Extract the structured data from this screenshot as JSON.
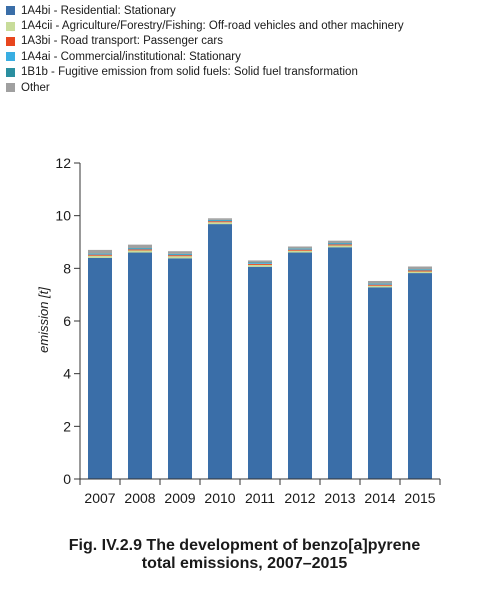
{
  "chart_data": {
    "type": "bar",
    "stacked": true,
    "categories": [
      "2007",
      "2008",
      "2009",
      "2010",
      "2011",
      "2012",
      "2013",
      "2014",
      "2015"
    ],
    "series": [
      {
        "name": "1A4bi - Residential: Stationary",
        "color": "#3a6ea8",
        "values": [
          8.4,
          8.6,
          8.38,
          9.68,
          8.06,
          8.6,
          8.8,
          7.28,
          7.82
        ]
      },
      {
        "name": "1A4cii - Agriculture/Forestry/Fishing: Off-road vehicles and other machinery",
        "color": "#c8dc9a",
        "values": [
          0.08,
          0.08,
          0.08,
          0.07,
          0.07,
          0.07,
          0.07,
          0.06,
          0.06
        ]
      },
      {
        "name": "1A3bi - Road transport: Passenger cars",
        "color": "#e8461e",
        "values": [
          0.04,
          0.04,
          0.04,
          0.04,
          0.04,
          0.04,
          0.04,
          0.04,
          0.04
        ]
      },
      {
        "name": "1A4ai - Commercial/institutional: Stationary",
        "color": "#39aee2",
        "values": [
          0.03,
          0.03,
          0.03,
          0.03,
          0.03,
          0.03,
          0.03,
          0.03,
          0.03
        ]
      },
      {
        "name": "1B1b - Fugitive emission from solid fuels: Solid fuel transformation",
        "color": "#2a8fa0",
        "values": [
          0.02,
          0.02,
          0.02,
          0.02,
          0.02,
          0.02,
          0.02,
          0.02,
          0.02
        ]
      },
      {
        "name": "Other",
        "color": "#a0a0a0",
        "values": [
          0.13,
          0.13,
          0.1,
          0.06,
          0.08,
          0.07,
          0.09,
          0.09,
          0.1
        ]
      }
    ],
    "ylabel": "emission [t]",
    "ylim": [
      0,
      12
    ],
    "yticks": [
      0,
      2,
      4,
      6,
      8,
      10,
      12
    ],
    "grid": false,
    "legend_position": "top-left"
  },
  "caption": {
    "line1": "Fig. IV.2.9  The development of benzo[a]pyrene",
    "line2": "total emissions, 2007–2015"
  }
}
